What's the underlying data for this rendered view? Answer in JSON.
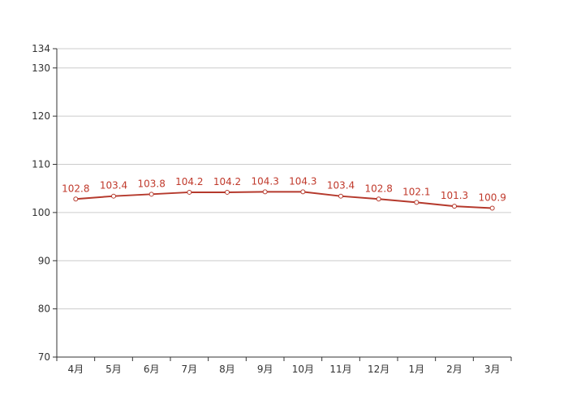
{
  "chart_data": {
    "type": "line",
    "title": "",
    "xlabel": "",
    "ylabel": "",
    "categories": [
      "4月",
      "5月",
      "6月",
      "7月",
      "8月",
      "9月",
      "10月",
      "11月",
      "12月",
      "1月",
      "2月",
      "3月"
    ],
    "series": [
      {
        "values": [
          102.8,
          103.4,
          103.8,
          104.2,
          104.2,
          104.3,
          104.3,
          103.4,
          102.8,
          102.1,
          101.3,
          100.9
        ]
      }
    ],
    "ylim": [
      70,
      134
    ],
    "yticks": [
      70,
      80,
      90,
      100,
      110,
      120,
      130,
      134
    ],
    "grid": true,
    "data_labels": true,
    "colors": {
      "line": "#b5392c",
      "label": "#c0392b",
      "grid": "#cccccc",
      "axis": "#333333"
    }
  }
}
